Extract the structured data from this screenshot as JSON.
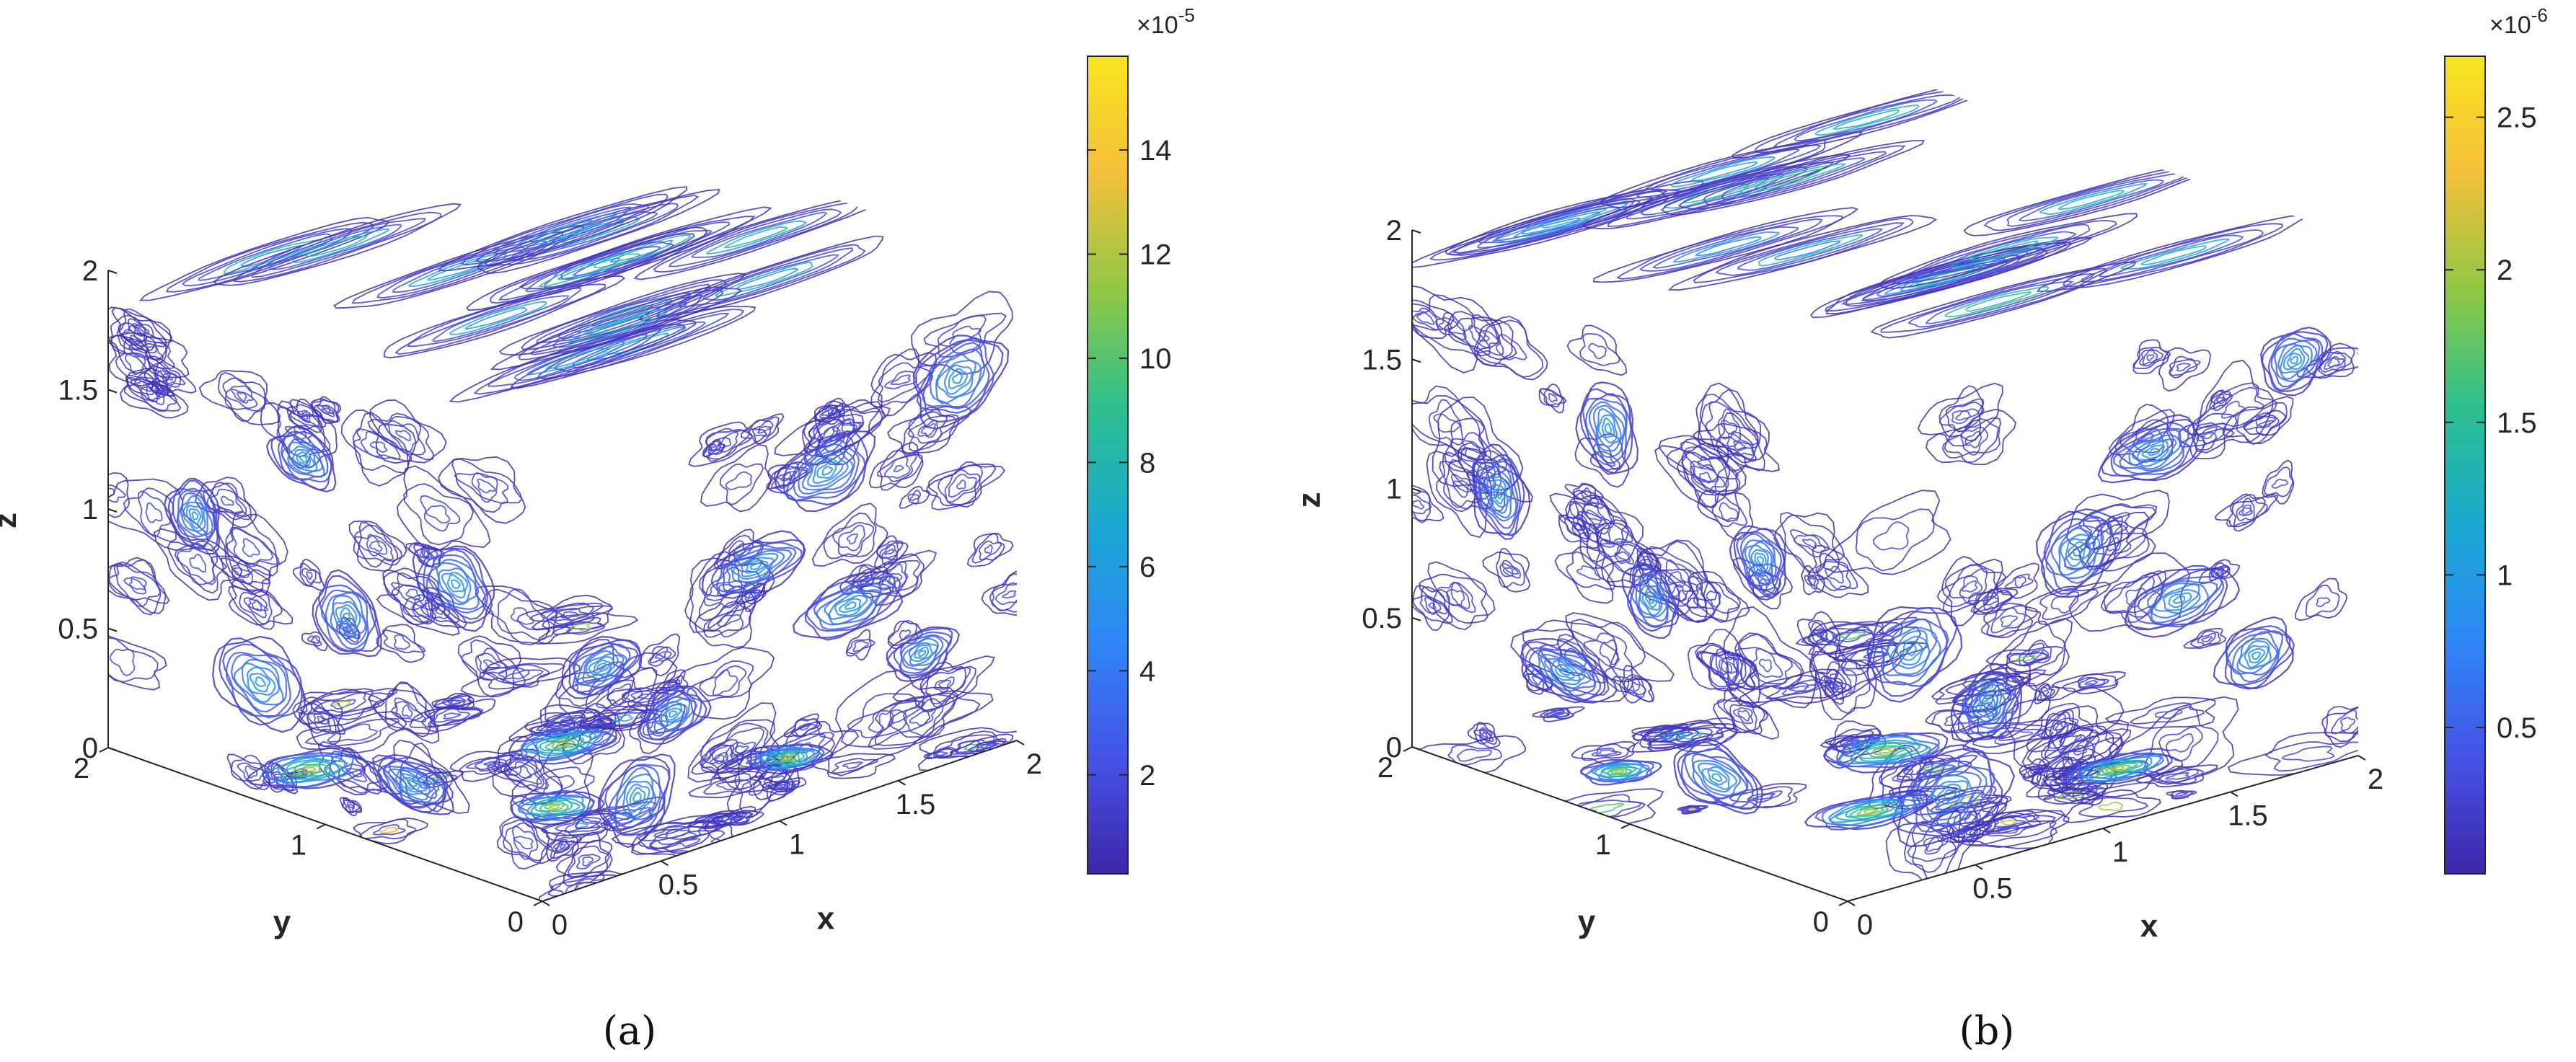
{
  "colormap": {
    "name": "parula",
    "stops": [
      "#3e26a8",
      "#4653e7",
      "#2e87f7",
      "#1aa9d0",
      "#2ebf8e",
      "#90c845",
      "#f5bf3a",
      "#f9e51f"
    ]
  },
  "chart_data": [
    {
      "type": "contour3d",
      "caption": "(a)",
      "xlabel": "x",
      "ylabel": "y",
      "zlabel": "z",
      "xlim": [
        0,
        2
      ],
      "ylim": [
        0,
        2
      ],
      "zlim": [
        0,
        2
      ],
      "x_ticks": [
        "0",
        "0.5",
        "1",
        "1.5",
        "2"
      ],
      "y_ticks": [
        "0",
        "1",
        "2"
      ],
      "z_ticks": [
        "0",
        "0.5",
        "1",
        "1.5",
        "2"
      ],
      "colorbar": {
        "exponent_label": "×10",
        "exponent": "-5",
        "ticks": [
          "2",
          "4",
          "6",
          "8",
          "10",
          "12",
          "14"
        ],
        "tick_values": [
          2,
          4,
          6,
          8,
          10,
          12,
          14
        ],
        "range": [
          0.1,
          15.8
        ]
      }
    },
    {
      "type": "contour3d",
      "caption": "(b)",
      "xlabel": "x",
      "ylabel": "y",
      "zlabel": "z",
      "xlim": [
        0,
        2
      ],
      "ylim": [
        0,
        2
      ],
      "zlim": [
        0,
        2
      ],
      "x_ticks": [
        "0",
        "0.5",
        "1",
        "1.5",
        "2"
      ],
      "y_ticks": [
        "0",
        "1",
        "2"
      ],
      "z_ticks": [
        "0",
        "0.5",
        "1",
        "1.5",
        "2"
      ],
      "colorbar": {
        "exponent_label": "×10",
        "exponent": "-6",
        "ticks": [
          "0.5",
          "1",
          "1.5",
          "2",
          "2.5"
        ],
        "tick_values": [
          0.5,
          1,
          1.5,
          2,
          2.5
        ],
        "range": [
          0.02,
          2.7
        ]
      }
    }
  ]
}
